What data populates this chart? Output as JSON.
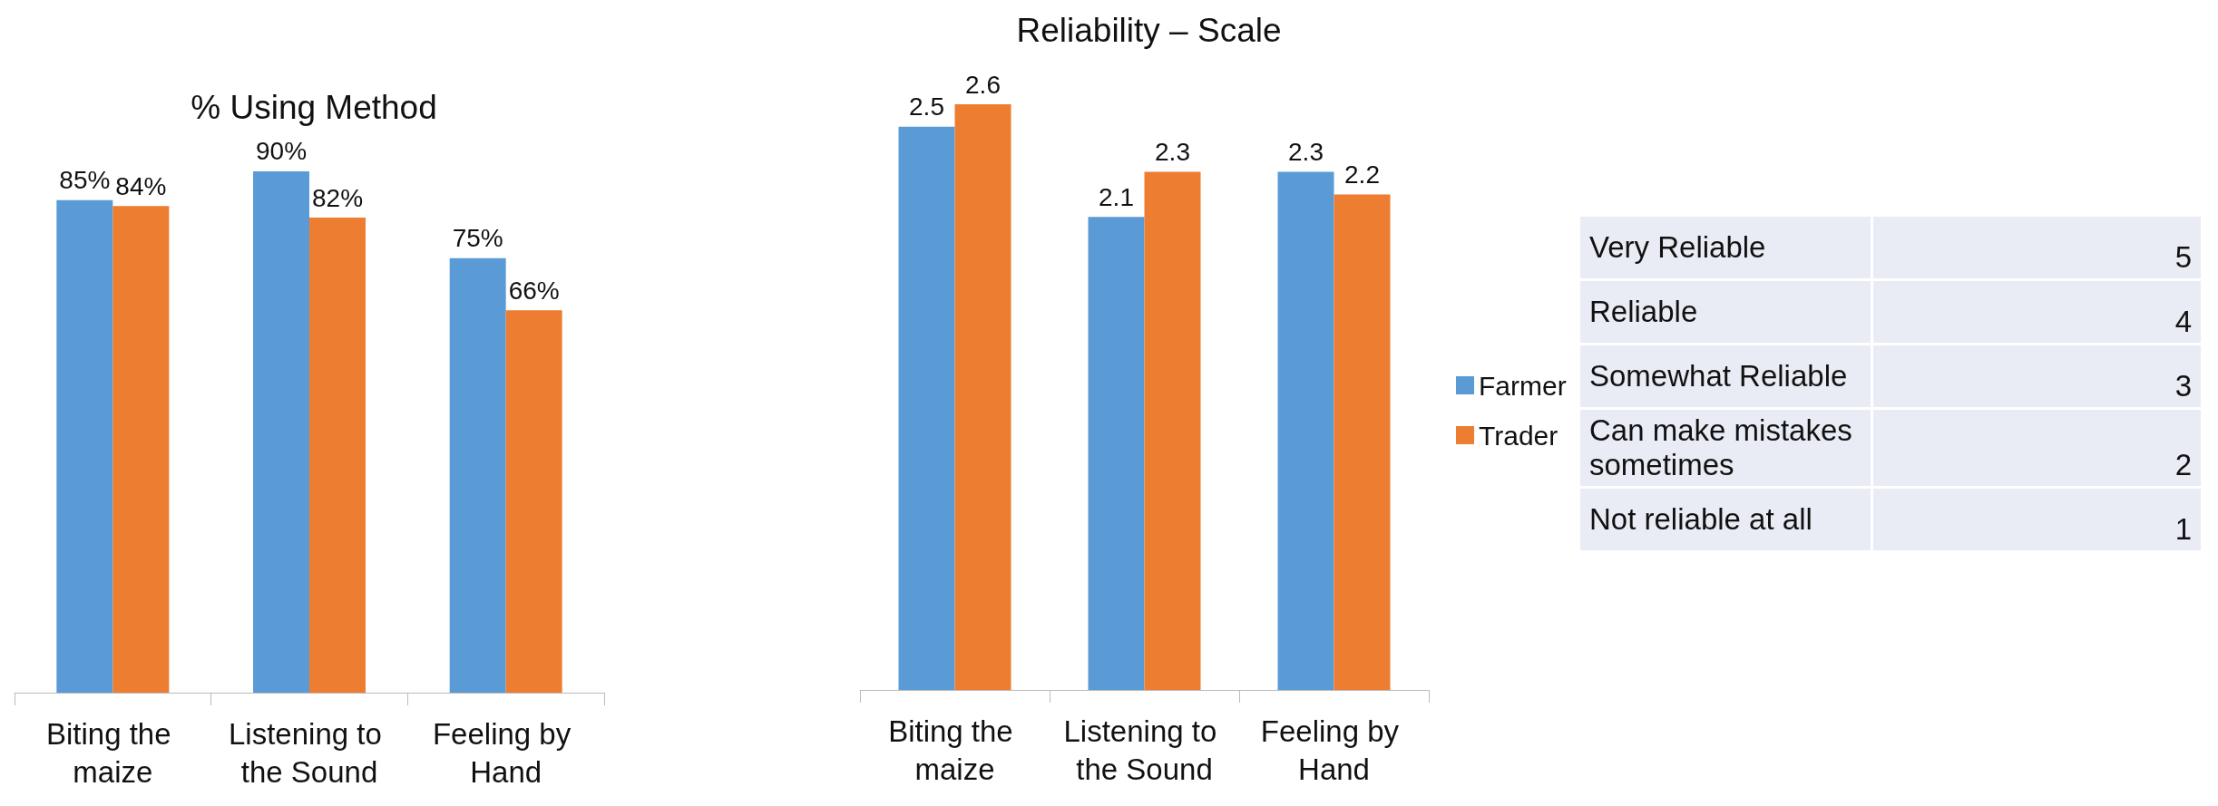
{
  "chart_data": [
    {
      "type": "bar",
      "title": "% Using Method",
      "categories": [
        "Biting the maize",
        "Listening to the Sound",
        "Feeling by Hand"
      ],
      "series": [
        {
          "color": "#5b9bd5",
          "values": [
            85,
            90,
            75
          ],
          "value_labels": [
            "85%",
            "90%",
            "75%"
          ]
        },
        {
          "color": "#ed7d31",
          "values": [
            84,
            82,
            66
          ],
          "value_labels": [
            "84%",
            "82%",
            "66%"
          ]
        }
      ],
      "legend": false
    },
    {
      "type": "bar",
      "title": "Reliability – Scale",
      "categories": [
        "Biting the maize",
        "Listening to the Sound",
        "Feeling by Hand"
      ],
      "series": [
        {
          "name": "Farmer",
          "color": "#5b9bd5",
          "values": [
            2.5,
            2.1,
            2.3
          ]
        },
        {
          "name": "Trader",
          "color": "#ed7d31",
          "values": [
            2.6,
            2.3,
            2.2
          ]
        }
      ],
      "data_labels": true,
      "legend": "right"
    },
    {
      "type": "other",
      "categories": [
        "Very Reliable",
        "Reliable",
        "Somewhat Reliable",
        "Can make mistakes sometimes",
        "Not reliable at all"
      ],
      "values": [
        5,
        4,
        3,
        2,
        1
      ],
      "data_labels": true
    }
  ]
}
